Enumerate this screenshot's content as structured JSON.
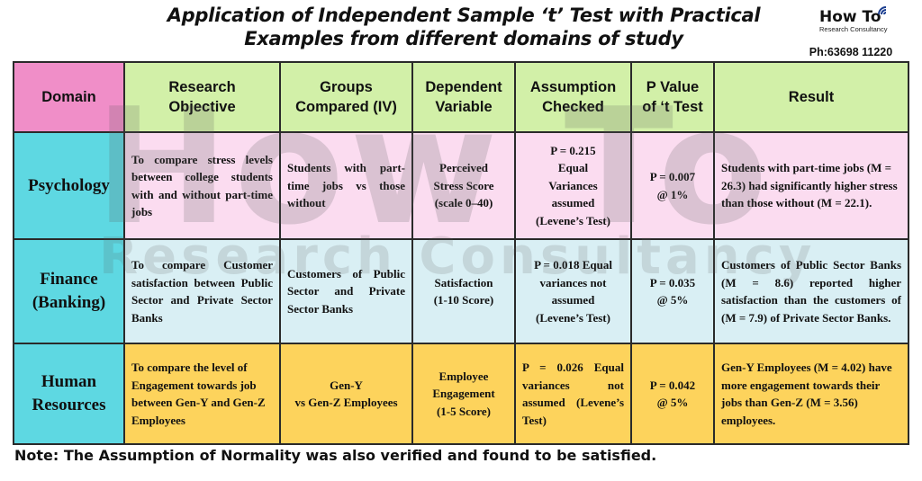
{
  "title": {
    "line1": "Application of Independent Sample ‘t’ Test with Practical",
    "line2": "Examples from different domains of study"
  },
  "brand": {
    "name": "How To",
    "tagline": "Research Consultancy",
    "phone": "Ph:63698 11220"
  },
  "watermark": {
    "main": "How To",
    "sub": "Research Consultancy"
  },
  "table": {
    "headers": {
      "domain": "Domain",
      "objective": [
        "Research",
        "Objective"
      ],
      "groups": [
        "Groups",
        "Compared (IV)"
      ],
      "dependent": [
        "Dependent",
        "Variable"
      ],
      "assumption": [
        "Assumption",
        "Checked"
      ],
      "pvalue": [
        "P Value",
        "of ‘t Test"
      ],
      "result": "Result"
    },
    "rows": [
      {
        "domain": [
          "Psychology"
        ],
        "objective": "To compare stress levels between college students with and without part-time jobs",
        "groups": "Students with part-time jobs vs those without",
        "dependent": [
          "Perceived",
          "Stress Score",
          "(scale 0–40)"
        ],
        "assumption": [
          "P = 0.215",
          "Equal",
          "Variances",
          "assumed",
          "(Levene’s Test)"
        ],
        "pvalue": [
          "P = 0.007",
          "@ 1%"
        ],
        "result": "Students with part-time jobs (M = 26.3) had significantly higher stress than those without (M = 22.1)."
      },
      {
        "domain": [
          "Finance",
          "(Banking)"
        ],
        "objective": "To compare Customer satisfaction between Public Sector and Private Sector Banks",
        "groups": "Customers of Public Sector and Private Sector Banks",
        "dependent": [
          "Satisfaction",
          "(1-10 Score)"
        ],
        "assumption": [
          "P = 0.018 Equal",
          "variances not",
          "assumed",
          "(Levene’s Test)"
        ],
        "pvalue": [
          "P = 0.035",
          "@ 5%"
        ],
        "result": "Customers of Public Sector Banks (M = 8.6) reported higher satisfaction than the customers of (M = 7.9) of Private Sector Banks."
      },
      {
        "domain": [
          "Human",
          "Resources"
        ],
        "objective": "To compare the level of Engagement towards job between Gen-Y and Gen-Z Employees",
        "groups": [
          "Gen-Y",
          "vs Gen-Z Employees"
        ],
        "dependent": [
          "Employee",
          "Engagement",
          "(1-5 Score)"
        ],
        "assumption": "P = 0.026 Equal variances not assumed (Levene’s Test)",
        "pvalue": [
          "P = 0.042",
          "@ 5%"
        ],
        "result": "Gen-Y Employees (M = 4.02) have more engagement towards their jobs than Gen-Z (M = 3.56) employees."
      }
    ]
  },
  "note": "Note: The Assumption of Normality was also verified and found to be satisfied.",
  "colors": {
    "domain_header": "#f08ec8",
    "header": "#d2f0a8",
    "domain_column": "#5ed8e2",
    "row1": "#fbdcf0",
    "row2": "#d9eff4",
    "row3": "#fdd35c"
  }
}
